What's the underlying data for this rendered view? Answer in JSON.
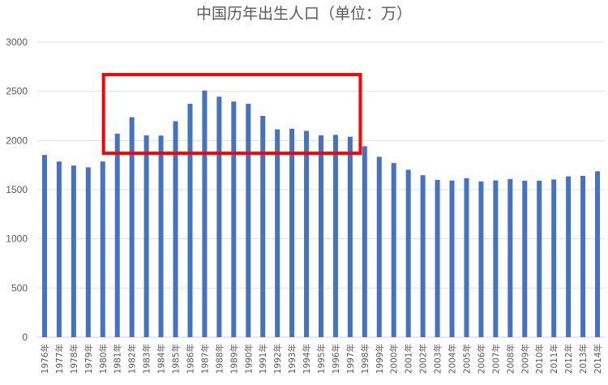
{
  "chart_data": {
    "type": "bar",
    "title": "中国历年出生人口（单位：万）",
    "xlabel": "",
    "ylabel": "",
    "ylim": [
      0,
      3000
    ],
    "yticks": [
      0,
      500,
      1000,
      1500,
      2000,
      2500,
      3000
    ],
    "grid": true,
    "legend": "none",
    "bar_color": "#4472C4",
    "highlight_box": {
      "color": "#FF0000",
      "from_category": "1981年",
      "to_category": "1997年",
      "y_range": [
        1870,
        2670
      ]
    },
    "categories": [
      "1976年",
      "1977年",
      "1978年",
      "1979年",
      "1980年",
      "1981年",
      "1982年",
      "1983年",
      "1984年",
      "1985年",
      "1986年",
      "1987年",
      "1988年",
      "1989年",
      "1990年",
      "1991年",
      "1992年",
      "1993年",
      "1994年",
      "1995年",
      "1996年",
      "1997年",
      "1998年",
      "1999年",
      "2000年",
      "2001年",
      "2002年",
      "2003年",
      "2004年",
      "2005年",
      "2006年",
      "2007年",
      "2008年",
      "2009年",
      "2010年",
      "2011年",
      "2012年",
      "2013年",
      "2014年"
    ],
    "values": [
      1853,
      1786,
      1745,
      1727,
      1787,
      2069,
      2237,
      2052,
      2050,
      2196,
      2374,
      2508,
      2445,
      2396,
      2374,
      2250,
      2113,
      2120,
      2098,
      2052,
      2057,
      2038,
      1942,
      1834,
      1771,
      1702,
      1647,
      1599,
      1593,
      1617,
      1584,
      1594,
      1608,
      1591,
      1592,
      1604,
      1635,
      1640,
      1687
    ]
  }
}
